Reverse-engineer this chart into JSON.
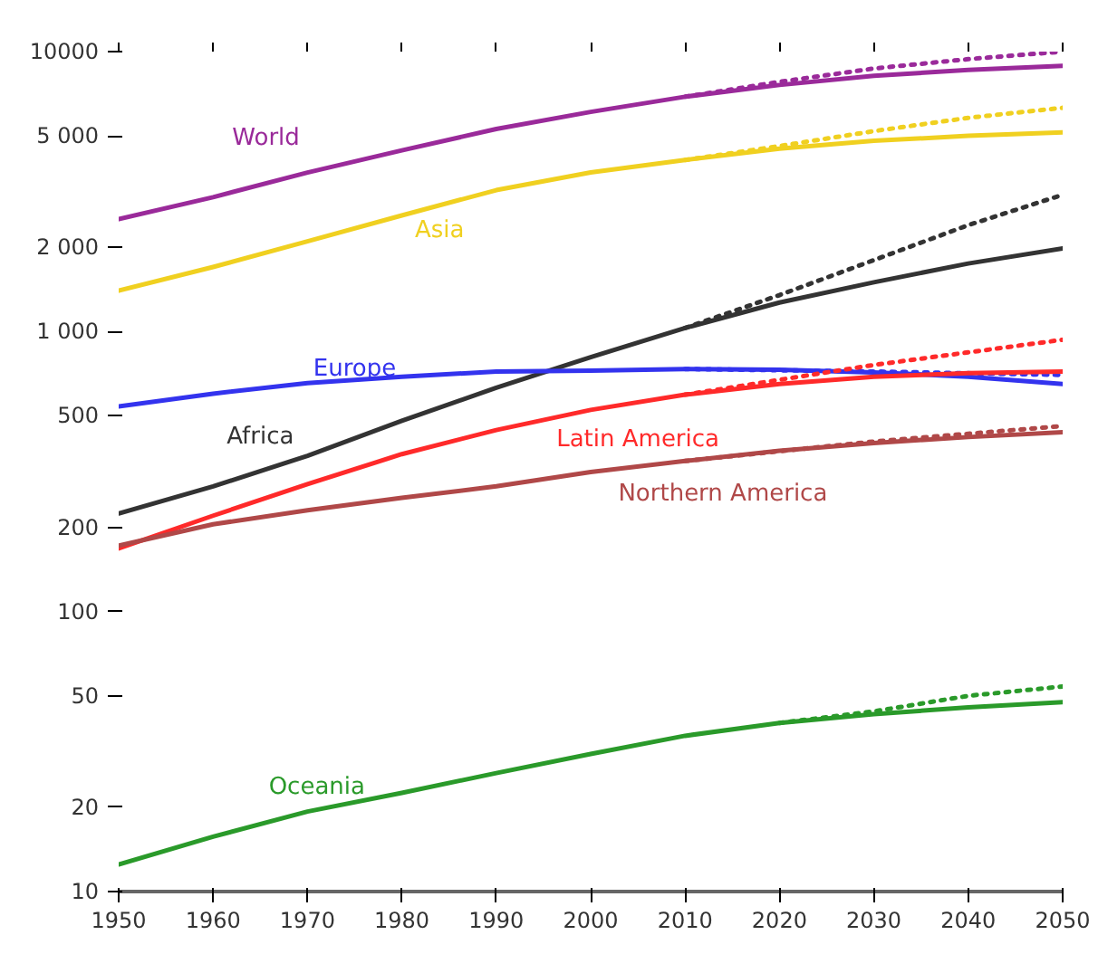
{
  "chart_data": {
    "type": "line",
    "log": "y",
    "grid": false,
    "legend": false,
    "line_style": "solid",
    "marker": "none",
    "x": [
      1950,
      1960,
      1970,
      1980,
      1990,
      2000,
      2010,
      2020,
      2030,
      2040,
      2050
    ],
    "xlim": [
      1950,
      2050
    ],
    "xticks": [
      1950,
      1960,
      1970,
      1980,
      1990,
      2000,
      2010,
      2020,
      2030,
      2040,
      2050
    ],
    "ylim": [
      10,
      10000
    ],
    "yticks": [
      10,
      20,
      50,
      100,
      200,
      500,
      {
        "value": 1000,
        "label": "1 000"
      },
      {
        "value": 2000,
        "label": "2 000"
      },
      {
        "value": 5000,
        "label": "5 000"
      },
      10000
    ],
    "series": [
      {
        "name": "World",
        "color": "#9a2a9a",
        "values": [
          2520,
          3020,
          3700,
          4440,
          5290,
          6090,
          6900,
          7600,
          8200,
          8600,
          8900
        ]
      },
      {
        "color": "#9a2a9a",
        "line_style": "dotted",
        "x": [
          2010,
          2020,
          2030,
          2040,
          2050
        ],
        "values": [
          6900,
          7800,
          8700,
          9400,
          10000
        ]
      },
      {
        "name": "Asia",
        "color": "#f0d020",
        "values": [
          1400,
          1700,
          2100,
          2600,
          3200,
          3700,
          4100,
          4500,
          4800,
          5000,
          5150
        ]
      },
      {
        "color": "#f0d020",
        "line_style": "dotted",
        "x": [
          2010,
          2020,
          2030,
          2040,
          2050
        ],
        "values": [
          4100,
          4600,
          5200,
          5800,
          6300
        ]
      },
      {
        "name": "Africa",
        "color": "#333333",
        "values": [
          224,
          280,
          360,
          480,
          630,
          810,
          1030,
          1270,
          1500,
          1750,
          1980
        ]
      },
      {
        "color": "#333333",
        "line_style": "dotted",
        "x": [
          2010,
          2020,
          2030,
          2040,
          2050
        ],
        "values": [
          1030,
          1350,
          1800,
          2400,
          3080
        ]
      },
      {
        "name": "Europe",
        "color": "#3333ee",
        "values": [
          540,
          600,
          655,
          690,
          720,
          725,
          735,
          730,
          715,
          690,
          650
        ]
      },
      {
        "color": "#3333ee",
        "line_style": "dotted",
        "x": [
          2010,
          2030,
          2050
        ],
        "values": [
          735,
          720,
          700
        ]
      },
      {
        "name": "Latin America",
        "color": "#ff2a2a",
        "values": [
          168,
          220,
          285,
          365,
          445,
          525,
          595,
          650,
          690,
          710,
          720
        ]
      },
      {
        "color": "#ff2a2a",
        "line_style": "dotted",
        "x": [
          2010,
          2030,
          2050
        ],
        "values": [
          595,
          760,
          935
        ]
      },
      {
        "name": "Northern America",
        "color": "#b04848",
        "values": [
          172,
          205,
          230,
          255,
          280,
          315,
          345,
          375,
          400,
          420,
          437
        ]
      },
      {
        "color": "#b04848",
        "line_style": "dotted",
        "x": [
          2010,
          2030,
          2050
        ],
        "values": [
          345,
          405,
          460
        ]
      },
      {
        "name": "Oceania",
        "color": "#2a9a2a",
        "values": [
          12.5,
          15.7,
          19.3,
          22.5,
          26.5,
          31,
          36,
          40,
          43,
          45.5,
          47.5
        ]
      },
      {
        "color": "#2a9a2a",
        "line_style": "dotted",
        "x": [
          2020,
          2030,
          2040,
          2050
        ],
        "values": [
          40,
          44,
          50,
          54
        ]
      }
    ]
  }
}
